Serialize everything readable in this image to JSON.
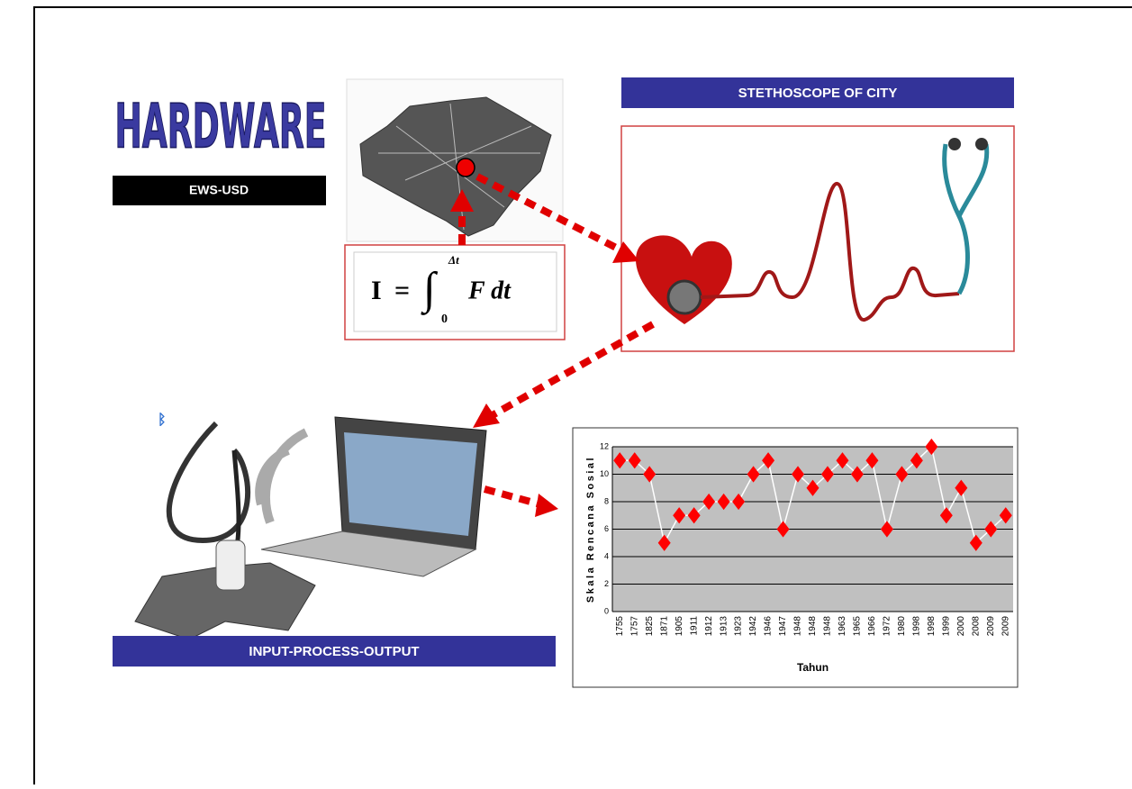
{
  "header": {
    "title": "HARDWARE",
    "subtitle": "EWS-USD"
  },
  "banners": {
    "top": "STETHOSCOPE OF CITY",
    "bottom": "INPUT-PROCESS-OUTPUT"
  },
  "formula": {
    "lhs": "I",
    "operator": "=",
    "integral": "∫",
    "upper": "Δt",
    "lower": "0",
    "integrand": "F dt"
  },
  "chart_data": {
    "type": "line",
    "x_label": "Tahun",
    "y_label": "Skala Rencana Sosial",
    "categories": [
      "1755",
      "1757",
      "1825",
      "1871",
      "1905",
      "1911",
      "1912",
      "1913",
      "1923",
      "1942",
      "1946",
      "1947",
      "1948",
      "1948",
      "1948",
      "1963",
      "1965",
      "1966",
      "1972",
      "1980",
      "1998",
      "1998",
      "1999",
      "2000",
      "2008",
      "2009",
      "2009"
    ],
    "values": [
      11,
      11,
      10,
      5,
      7,
      7,
      8,
      8,
      8,
      10,
      11,
      6,
      10,
      9,
      10,
      11,
      10,
      11,
      6,
      10,
      11,
      12,
      7,
      9,
      5,
      6,
      7
    ],
    "color": "#ff0000",
    "line_color": "#ffffff",
    "ylim": [
      0,
      12
    ],
    "yticks": [
      0,
      2,
      4,
      6,
      8,
      10,
      12
    ],
    "grid": true
  }
}
